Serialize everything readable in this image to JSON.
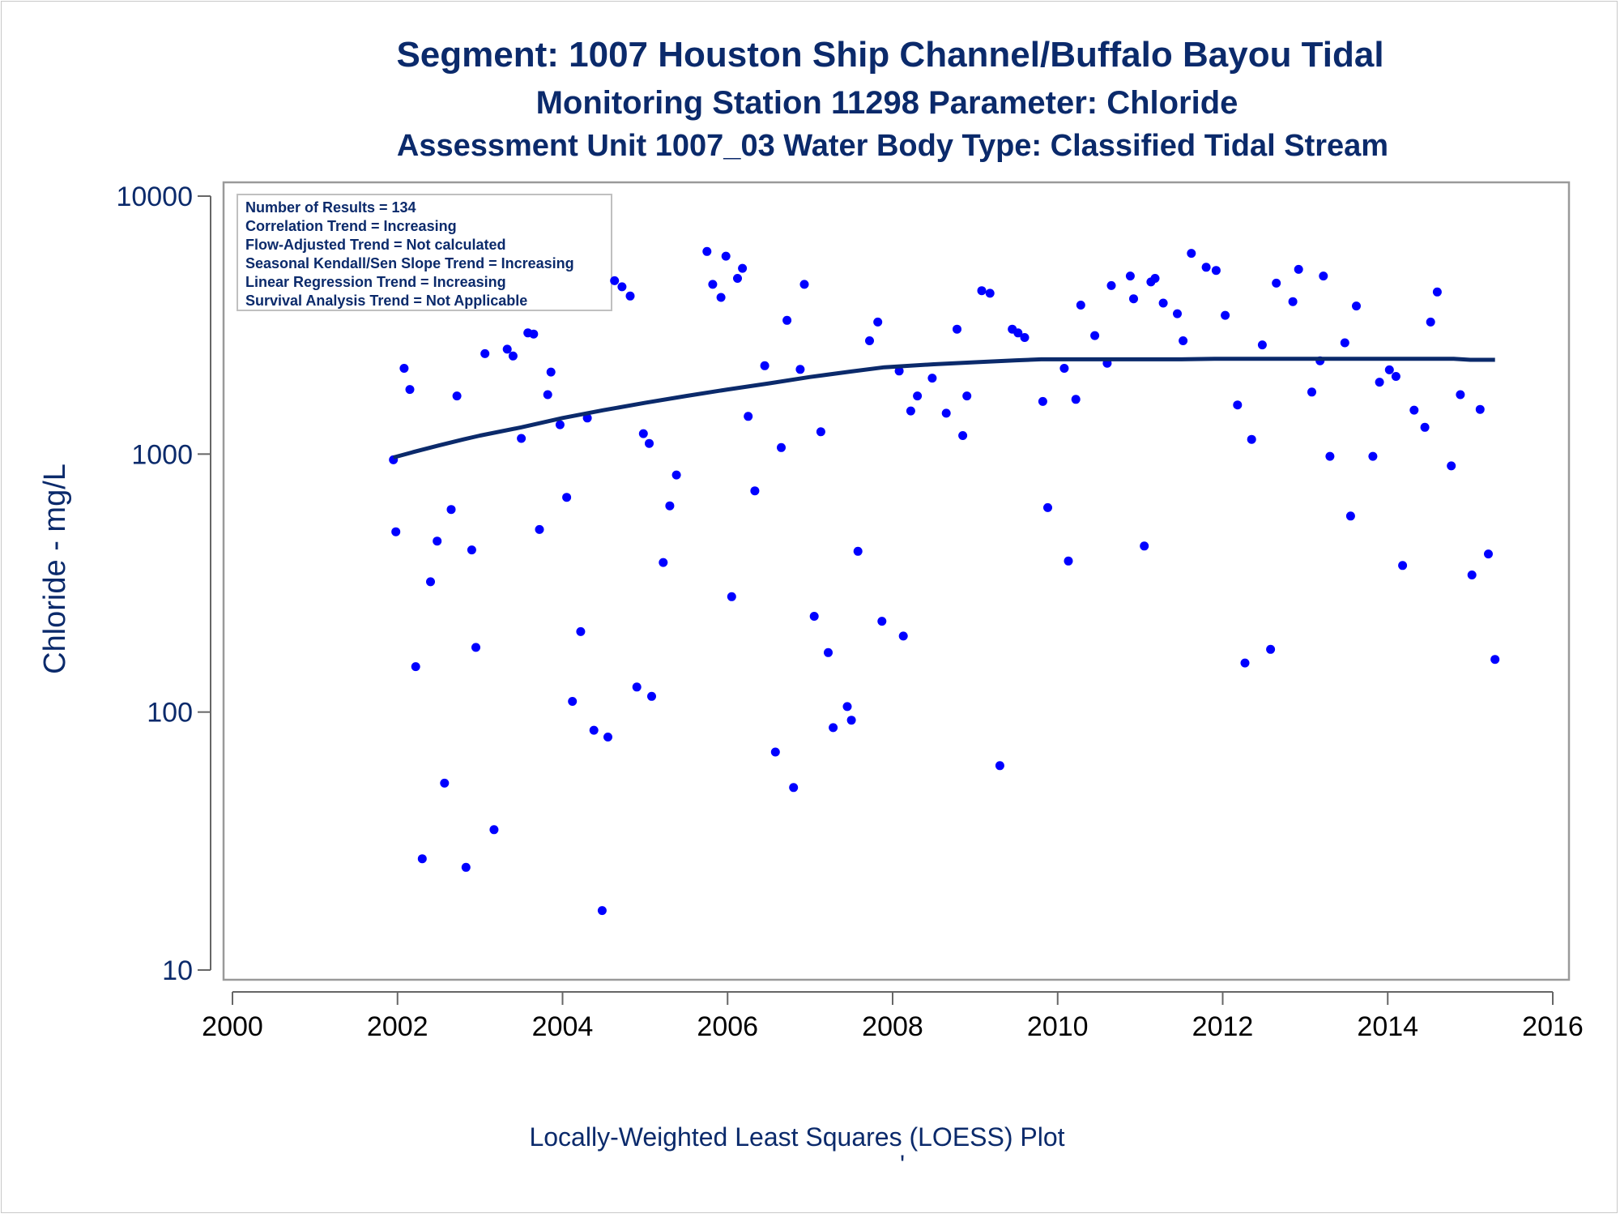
{
  "chart_data": {
    "type": "scatter",
    "title": "Segment: 1007  Houston Ship Channel/Buffalo Bayou Tidal",
    "subtitle": "Monitoring Station 11298 Parameter: Chloride",
    "subtitle2": "Assessment Unit 1007_03   Water Body Type: Classified Tidal Stream",
    "ylabel": "Chloride - mg/L",
    "footnote": "Locally-Weighted Least Squares (LOESS) Plot",
    "footnote_mark": "'",
    "y_scale": "log",
    "xlim": [
      2000,
      2016
    ],
    "ylim": [
      10,
      10000
    ],
    "x_ticks": [
      "2000",
      "2002",
      "2004",
      "2006",
      "2008",
      "2010",
      "2012",
      "2014",
      "2016"
    ],
    "y_ticks": [
      "10",
      "100",
      "1000",
      "10000"
    ],
    "grid": false,
    "legend": "none",
    "colors": {
      "points": "#0000ff",
      "loess": "#0b2a6b",
      "text": "#0b2a6b"
    },
    "stats_box": [
      "Number of Results = 134",
      "Correlation Trend = Increasing",
      "Flow-Adjusted Trend = Not calculated",
      "Seasonal Kendall/Sen Slope Trend = Increasing",
      "Linear Regression Trend = Increasing",
      "Survival Analysis Trend = Not Applicable"
    ],
    "points": [
      [
        2001.95,
        950
      ],
      [
        2001.98,
        500
      ],
      [
        2002.08,
        2150
      ],
      [
        2002.15,
        1780
      ],
      [
        2002.22,
        150
      ],
      [
        2002.3,
        27
      ],
      [
        2002.4,
        320
      ],
      [
        2002.48,
        460
      ],
      [
        2002.57,
        53
      ],
      [
        2002.65,
        610
      ],
      [
        2002.72,
        1680
      ],
      [
        2002.83,
        25
      ],
      [
        2002.9,
        425
      ],
      [
        2002.95,
        178
      ],
      [
        2003.06,
        2450
      ],
      [
        2003.17,
        35
      ],
      [
        2003.33,
        2550
      ],
      [
        2003.4,
        2400
      ],
      [
        2003.5,
        1150
      ],
      [
        2003.58,
        2950
      ],
      [
        2003.65,
        2920
      ],
      [
        2003.72,
        510
      ],
      [
        2003.82,
        1700
      ],
      [
        2003.86,
        2080
      ],
      [
        2003.97,
        1300
      ],
      [
        2004.05,
        680
      ],
      [
        2004.12,
        110
      ],
      [
        2004.22,
        205
      ],
      [
        2004.3,
        1380
      ],
      [
        2004.38,
        85
      ],
      [
        2004.48,
        17
      ],
      [
        2004.55,
        80
      ],
      [
        2004.63,
        4700
      ],
      [
        2004.72,
        4450
      ],
      [
        2004.82,
        4100
      ],
      [
        2004.9,
        125
      ],
      [
        2004.98,
        1200
      ],
      [
        2005.05,
        1100
      ],
      [
        2005.08,
        115
      ],
      [
        2005.22,
        380
      ],
      [
        2005.3,
        630
      ],
      [
        2005.38,
        830
      ],
      [
        2005.75,
        6100
      ],
      [
        2005.82,
        4550
      ],
      [
        2005.92,
        4050
      ],
      [
        2005.98,
        5850
      ],
      [
        2006.05,
        280
      ],
      [
        2006.12,
        4800
      ],
      [
        2006.18,
        5250
      ],
      [
        2006.25,
        1400
      ],
      [
        2006.33,
        720
      ],
      [
        2006.45,
        2200
      ],
      [
        2006.58,
        70
      ],
      [
        2006.65,
        1060
      ],
      [
        2006.72,
        3300
      ],
      [
        2006.8,
        51
      ],
      [
        2006.88,
        2130
      ],
      [
        2006.93,
        4550
      ],
      [
        2007.05,
        235
      ],
      [
        2007.13,
        1220
      ],
      [
        2007.22,
        170
      ],
      [
        2007.28,
        87
      ],
      [
        2007.45,
        105
      ],
      [
        2007.5,
        93
      ],
      [
        2007.58,
        420
      ],
      [
        2007.72,
        2750
      ],
      [
        2007.82,
        3250
      ],
      [
        2007.87,
        225
      ],
      [
        2008.08,
        2100
      ],
      [
        2008.13,
        197
      ],
      [
        2008.22,
        1470
      ],
      [
        2008.3,
        1680
      ],
      [
        2008.48,
        1970
      ],
      [
        2008.65,
        1440
      ],
      [
        2008.78,
        3050
      ],
      [
        2008.85,
        1180
      ],
      [
        2008.9,
        1680
      ],
      [
        2009.08,
        4300
      ],
      [
        2009.18,
        4200
      ],
      [
        2009.3,
        62
      ],
      [
        2009.45,
        3050
      ],
      [
        2009.52,
        2950
      ],
      [
        2009.6,
        2830
      ],
      [
        2009.82,
        1600
      ],
      [
        2009.88,
        620
      ],
      [
        2010.08,
        2150
      ],
      [
        2010.13,
        385
      ],
      [
        2010.22,
        1630
      ],
      [
        2010.28,
        3780
      ],
      [
        2010.45,
        2880
      ],
      [
        2010.6,
        2250
      ],
      [
        2010.65,
        4500
      ],
      [
        2010.88,
        4900
      ],
      [
        2010.92,
        4000
      ],
      [
        2011.05,
        440
      ],
      [
        2011.13,
        4650
      ],
      [
        2011.18,
        4800
      ],
      [
        2011.28,
        3850
      ],
      [
        2011.45,
        3500
      ],
      [
        2011.52,
        2750
      ],
      [
        2011.62,
        6000
      ],
      [
        2011.8,
        5300
      ],
      [
        2011.92,
        5150
      ],
      [
        2012.03,
        3450
      ],
      [
        2012.18,
        1550
      ],
      [
        2012.27,
        155
      ],
      [
        2012.35,
        1140
      ],
      [
        2012.48,
        2650
      ],
      [
        2012.58,
        175
      ],
      [
        2012.65,
        4600
      ],
      [
        2012.85,
        3900
      ],
      [
        2012.92,
        5200
      ],
      [
        2013.08,
        1740
      ],
      [
        2013.18,
        2300
      ],
      [
        2013.22,
        4900
      ],
      [
        2013.3,
        980
      ],
      [
        2013.48,
        2700
      ],
      [
        2013.55,
        575
      ],
      [
        2013.62,
        3750
      ],
      [
        2013.82,
        980
      ],
      [
        2013.9,
        1900
      ],
      [
        2014.02,
        2120
      ],
      [
        2014.1,
        2000
      ],
      [
        2014.18,
        370
      ],
      [
        2014.32,
        1480
      ],
      [
        2014.45,
        1270
      ],
      [
        2014.52,
        3250
      ],
      [
        2014.6,
        4250
      ],
      [
        2014.77,
        900
      ],
      [
        2014.88,
        1700
      ],
      [
        2015.02,
        340
      ],
      [
        2015.12,
        1490
      ],
      [
        2015.22,
        410
      ],
      [
        2015.3,
        160
      ]
    ],
    "loess": [
      [
        2001.95,
        970
      ],
      [
        2002.2,
        1020
      ],
      [
        2002.5,
        1080
      ],
      [
        2002.8,
        1140
      ],
      [
        2003.0,
        1180
      ],
      [
        2003.5,
        1270
      ],
      [
        2004.0,
        1380
      ],
      [
        2004.5,
        1480
      ],
      [
        2005.0,
        1580
      ],
      [
        2005.5,
        1680
      ],
      [
        2006.0,
        1780
      ],
      [
        2006.5,
        1880
      ],
      [
        2007.0,
        1990
      ],
      [
        2007.5,
        2090
      ],
      [
        2007.9,
        2170
      ],
      [
        2008.0,
        2180
      ],
      [
        2008.5,
        2230
      ],
      [
        2009.0,
        2270
      ],
      [
        2009.5,
        2310
      ],
      [
        2009.8,
        2330
      ],
      [
        2010.0,
        2330
      ],
      [
        2010.5,
        2330
      ],
      [
        2011.0,
        2330
      ],
      [
        2011.5,
        2330
      ],
      [
        2011.9,
        2340
      ],
      [
        2012.5,
        2340
      ],
      [
        2013.0,
        2340
      ],
      [
        2013.5,
        2340
      ],
      [
        2014.0,
        2340
      ],
      [
        2014.8,
        2340
      ],
      [
        2015.0,
        2320
      ],
      [
        2015.3,
        2320
      ]
    ]
  }
}
